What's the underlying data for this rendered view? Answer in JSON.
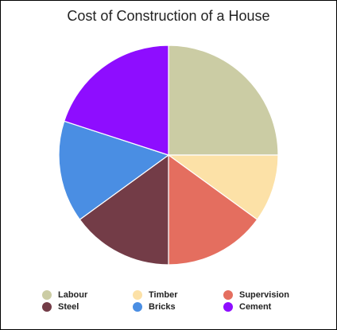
{
  "chart_data": {
    "type": "pie",
    "title": "Cost of Construction of a House",
    "categories": [
      "Labour",
      "Timber",
      "Supervision",
      "Steel",
      "Bricks",
      "Cement"
    ],
    "values": [
      25,
      10,
      15,
      15,
      15,
      20
    ],
    "colors": [
      "#cbcca4",
      "#fce1a7",
      "#e46e5f",
      "#733c47",
      "#4a8ee3",
      "#8e0dff"
    ],
    "legend_position": "bottom"
  }
}
